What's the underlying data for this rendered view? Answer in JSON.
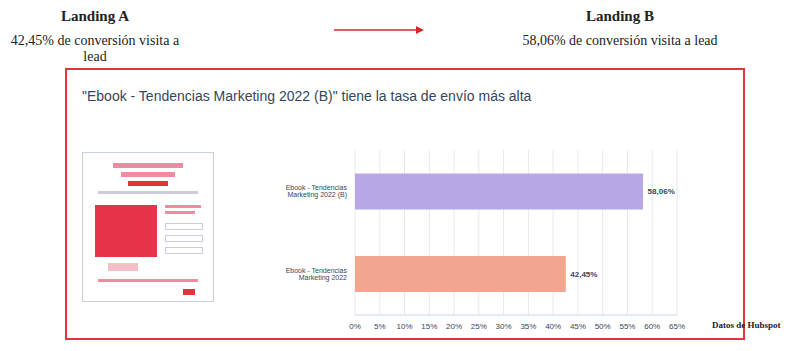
{
  "header": {
    "left": {
      "title": "Landing A",
      "text": "42,45% de conversión visita a lead"
    },
    "right": {
      "title": "Landing B",
      "text": "58,06% de conversión visita a lead"
    }
  },
  "chart_data": {
    "type": "bar",
    "title": "\"Ebook - Tendencias Marketing 2022 (B)\" tiene la tasa de envío más alta",
    "orientation": "horizontal",
    "categories": [
      "Ebook - Tendencias Marketing 2022 (B)",
      "Ebook - Tendencias Marketing 2022"
    ],
    "values": [
      58.06,
      42.45
    ],
    "value_labels": [
      "58,06%",
      "42,45%"
    ],
    "colors": [
      "#b8a7e5",
      "#f2a68f"
    ],
    "xlim": [
      0,
      65
    ],
    "xticks": [
      {
        "value": 0,
        "label": "0%"
      },
      {
        "value": 5,
        "label": "5%"
      },
      {
        "value": 10,
        "label": "10%"
      },
      {
        "value": 15,
        "label": "15%"
      },
      {
        "value": 20,
        "label": "20%"
      },
      {
        "value": 25,
        "label": "25%"
      },
      {
        "value": 30,
        "label": "30%"
      },
      {
        "value": 35,
        "label": "35%"
      },
      {
        "value": 40,
        "label": "40%"
      },
      {
        "value": 45,
        "label": "45%"
      },
      {
        "value": 50,
        "label": "50%"
      },
      {
        "value": 55,
        "label": "55%"
      },
      {
        "value": 60,
        "label": "60%"
      },
      {
        "value": 65,
        "label": "65%"
      }
    ],
    "grid": true,
    "data_labels": true
  },
  "source": "Datos de Hubspot"
}
